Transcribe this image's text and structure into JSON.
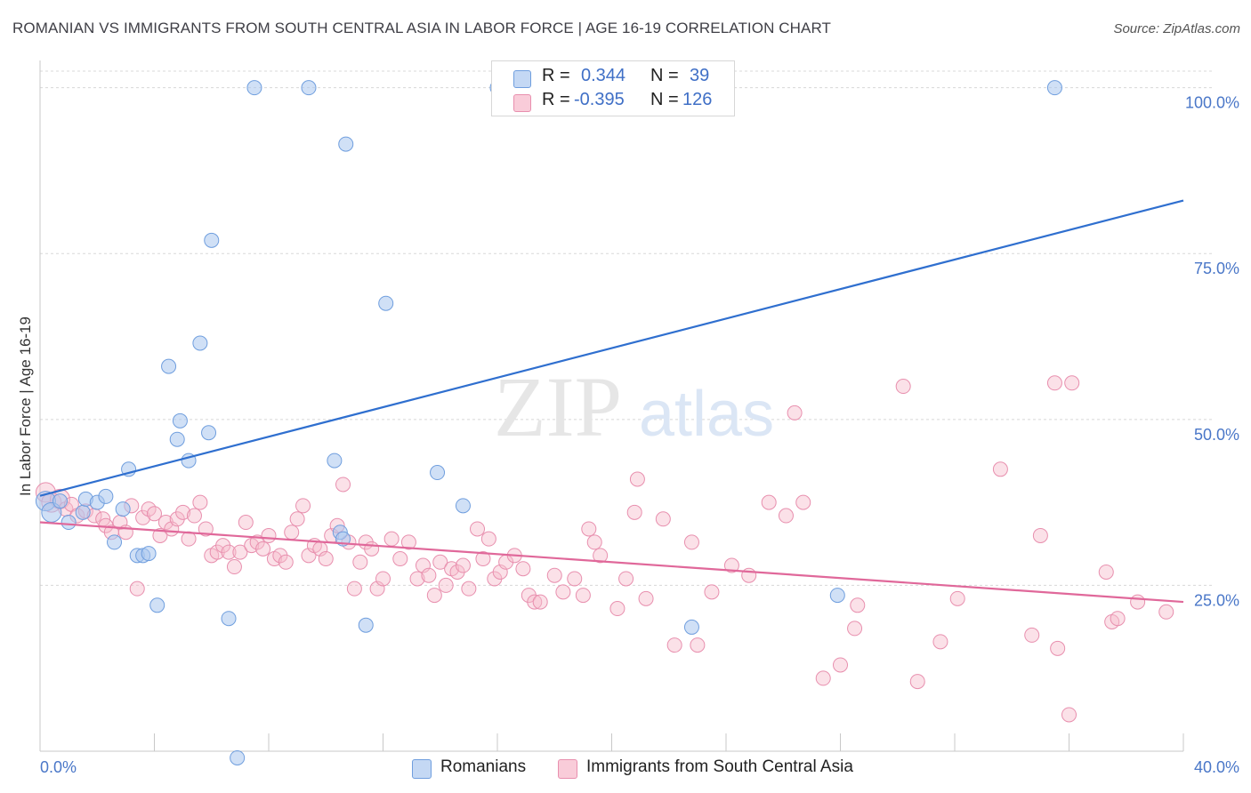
{
  "header": {
    "title": "ROMANIAN VS IMMIGRANTS FROM SOUTH CENTRAL ASIA IN LABOR FORCE | AGE 16-19 CORRELATION CHART",
    "source": "Source: ZipAtlas.com"
  },
  "legend_top": {
    "rows": [
      {
        "r_label": "R =",
        "r_value": "0.344",
        "n_label": "N =",
        "n_value": "39"
      },
      {
        "r_label": "R =",
        "r_value": "-0.395",
        "n_label": "N =",
        "n_value": "126"
      }
    ]
  },
  "legend_bottom": {
    "items": [
      "Romanians",
      "Immigrants from South Central Asia"
    ]
  },
  "watermark": {
    "zip": "ZIP",
    "atlas": "atlas"
  },
  "colors": {
    "blue_fill": "#a9c6ef",
    "blue_stroke": "#6f9ede",
    "blue_line": "#2f6fcf",
    "pink_fill": "#f6bccd",
    "pink_stroke": "#e88fae",
    "pink_line": "#e0689a",
    "tick_text": "#4a77c8",
    "grid": "#d8d8d8"
  },
  "chart_data": {
    "type": "scatter",
    "title": "ROMANIAN VS IMMIGRANTS FROM SOUTH CENTRAL ASIA IN LABOR FORCE | AGE 16-19 CORRELATION CHART",
    "xlabel": "",
    "ylabel": "In Labor Force | Age 16-19",
    "xlim": [
      0,
      40
    ],
    "ylim": [
      0,
      100
    ],
    "x_tick_labels": [
      "0.0%",
      "40.0%"
    ],
    "y_ticks": [
      25,
      50,
      75,
      100
    ],
    "y_tick_labels": [
      "25.0%",
      "50.0%",
      "75.0%",
      "100.0%"
    ],
    "grid": true,
    "legend_position": "top-center",
    "series": [
      {
        "name": "Romanians",
        "r": 0.344,
        "n": 39,
        "trend": {
          "x": [
            0,
            40
          ],
          "y": [
            38.5,
            83.0
          ]
        },
        "points": [
          [
            0.2,
            37.7
          ],
          [
            0.4,
            36.0
          ],
          [
            0.7,
            37.7
          ],
          [
            1.0,
            34.5
          ],
          [
            1.5,
            36.0
          ],
          [
            1.6,
            38.0
          ],
          [
            2.0,
            37.5
          ],
          [
            2.3,
            38.4
          ],
          [
            2.6,
            31.5
          ],
          [
            2.9,
            36.5
          ],
          [
            3.1,
            42.5
          ],
          [
            3.4,
            29.5
          ],
          [
            3.6,
            29.5
          ],
          [
            3.8,
            29.8
          ],
          [
            4.1,
            22.0
          ],
          [
            4.5,
            58.0
          ],
          [
            4.8,
            47.0
          ],
          [
            4.9,
            49.8
          ],
          [
            5.2,
            43.8
          ],
          [
            5.6,
            61.5
          ],
          [
            5.9,
            48.0
          ],
          [
            6.0,
            77.0
          ],
          [
            6.6,
            20.0
          ],
          [
            6.9,
            -1.0
          ],
          [
            7.5,
            100.0
          ],
          [
            9.4,
            100.0
          ],
          [
            10.3,
            43.8
          ],
          [
            10.5,
            33.0
          ],
          [
            10.6,
            32.0
          ],
          [
            10.7,
            91.5
          ],
          [
            11.4,
            19.0
          ],
          [
            12.1,
            67.5
          ],
          [
            13.9,
            42.0
          ],
          [
            14.8,
            37.0
          ],
          [
            16.0,
            100.0
          ],
          [
            16.3,
            100.0
          ],
          [
            22.8,
            18.7
          ],
          [
            27.9,
            23.5
          ],
          [
            35.5,
            100.0
          ]
        ]
      },
      {
        "name": "Immigrants from South Central Asia",
        "r": -0.395,
        "n": 126,
        "trend": {
          "x": [
            0,
            40
          ],
          "y": [
            34.5,
            22.5
          ]
        },
        "points": [
          [
            0.2,
            39.0
          ],
          [
            0.4,
            37.5
          ],
          [
            0.7,
            38.0
          ],
          [
            0.9,
            36.5
          ],
          [
            1.1,
            37.2
          ],
          [
            1.3,
            35.5
          ],
          [
            1.6,
            36.2
          ],
          [
            1.9,
            35.5
          ],
          [
            2.2,
            35.0
          ],
          [
            2.3,
            34.0
          ],
          [
            2.5,
            33.0
          ],
          [
            2.8,
            34.5
          ],
          [
            3.0,
            33.0
          ],
          [
            3.2,
            37.0
          ],
          [
            3.4,
            24.5
          ],
          [
            3.6,
            35.2
          ],
          [
            3.8,
            36.5
          ],
          [
            4.0,
            35.8
          ],
          [
            4.2,
            32.5
          ],
          [
            4.4,
            34.5
          ],
          [
            4.6,
            33.5
          ],
          [
            4.8,
            35.0
          ],
          [
            5.0,
            36.0
          ],
          [
            5.2,
            32.0
          ],
          [
            5.4,
            35.5
          ],
          [
            5.6,
            37.5
          ],
          [
            5.8,
            33.5
          ],
          [
            6.0,
            29.5
          ],
          [
            6.2,
            30.0
          ],
          [
            6.4,
            31.0
          ],
          [
            6.6,
            30.0
          ],
          [
            6.8,
            27.8
          ],
          [
            7.0,
            30.0
          ],
          [
            7.2,
            34.5
          ],
          [
            7.4,
            31.0
          ],
          [
            7.6,
            31.5
          ],
          [
            7.8,
            30.5
          ],
          [
            8.0,
            32.5
          ],
          [
            8.2,
            29.0
          ],
          [
            8.4,
            29.5
          ],
          [
            8.6,
            28.5
          ],
          [
            8.8,
            33.0
          ],
          [
            9.0,
            35.0
          ],
          [
            9.2,
            37.0
          ],
          [
            9.4,
            29.5
          ],
          [
            9.6,
            31.0
          ],
          [
            9.8,
            30.5
          ],
          [
            10.0,
            29.0
          ],
          [
            10.2,
            32.5
          ],
          [
            10.4,
            34.0
          ],
          [
            10.6,
            40.2
          ],
          [
            10.8,
            31.5
          ],
          [
            11.0,
            24.5
          ],
          [
            11.2,
            28.5
          ],
          [
            11.4,
            31.5
          ],
          [
            11.6,
            30.5
          ],
          [
            11.8,
            24.5
          ],
          [
            12.0,
            26.0
          ],
          [
            12.3,
            32.0
          ],
          [
            12.6,
            29.0
          ],
          [
            12.9,
            31.5
          ],
          [
            13.2,
            26.0
          ],
          [
            13.4,
            28.0
          ],
          [
            13.6,
            26.5
          ],
          [
            13.8,
            23.5
          ],
          [
            14.0,
            28.5
          ],
          [
            14.2,
            25.0
          ],
          [
            14.4,
            27.5
          ],
          [
            14.6,
            27.0
          ],
          [
            14.8,
            28.0
          ],
          [
            15.0,
            24.5
          ],
          [
            15.3,
            33.5
          ],
          [
            15.5,
            29.0
          ],
          [
            15.7,
            32.0
          ],
          [
            15.9,
            26.0
          ],
          [
            16.1,
            27.0
          ],
          [
            16.3,
            28.5
          ],
          [
            16.6,
            29.5
          ],
          [
            16.9,
            27.5
          ],
          [
            17.1,
            23.5
          ],
          [
            17.3,
            22.5
          ],
          [
            17.5,
            22.5
          ],
          [
            18.0,
            26.5
          ],
          [
            18.3,
            24.0
          ],
          [
            18.7,
            26.0
          ],
          [
            19.0,
            23.5
          ],
          [
            19.2,
            33.5
          ],
          [
            19.4,
            31.5
          ],
          [
            19.6,
            29.5
          ],
          [
            20.2,
            21.5
          ],
          [
            20.5,
            26.0
          ],
          [
            20.8,
            36.0
          ],
          [
            20.9,
            41.0
          ],
          [
            21.2,
            23.0
          ],
          [
            21.8,
            35.0
          ],
          [
            22.2,
            16.0
          ],
          [
            22.8,
            31.5
          ],
          [
            23.0,
            16.0
          ],
          [
            23.5,
            24.0
          ],
          [
            24.2,
            28.0
          ],
          [
            24.8,
            26.5
          ],
          [
            25.5,
            37.5
          ],
          [
            26.1,
            35.5
          ],
          [
            26.4,
            51.0
          ],
          [
            26.7,
            37.5
          ],
          [
            27.4,
            11.0
          ],
          [
            28.0,
            13.0
          ],
          [
            28.5,
            18.5
          ],
          [
            28.6,
            22.0
          ],
          [
            30.2,
            55.0
          ],
          [
            30.7,
            10.5
          ],
          [
            31.5,
            16.5
          ],
          [
            32.1,
            23.0
          ],
          [
            33.6,
            42.5
          ],
          [
            34.7,
            17.5
          ],
          [
            35.0,
            32.5
          ],
          [
            35.5,
            55.5
          ],
          [
            36.0,
            5.5
          ],
          [
            35.6,
            15.5
          ],
          [
            37.3,
            27.0
          ],
          [
            37.5,
            19.5
          ],
          [
            37.7,
            20.0
          ],
          [
            38.4,
            22.5
          ],
          [
            39.4,
            21.0
          ],
          [
            36.1,
            55.5
          ]
        ]
      }
    ]
  }
}
